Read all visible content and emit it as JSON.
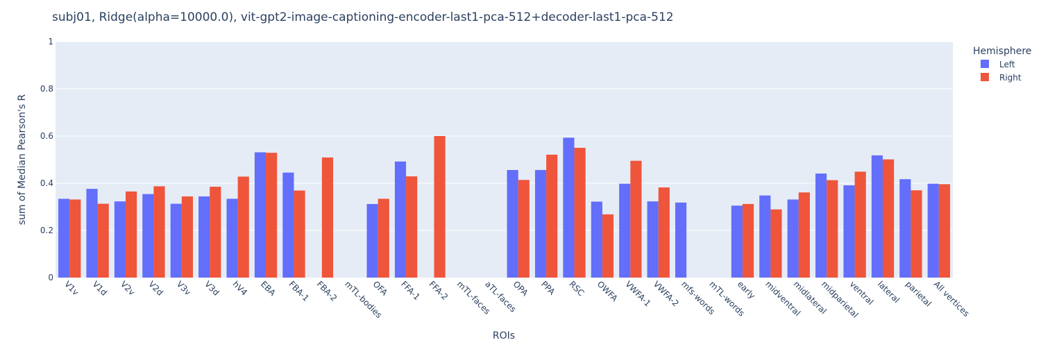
{
  "chart_data": {
    "type": "bar",
    "title": "subj01, Ridge(alpha=10000.0), vit-gpt2-image-captioning-encoder-last1-pca-512+decoder-last1-pca-512",
    "xlabel": "ROIs",
    "ylabel": "sum of Median Pearson's R",
    "ylim": [
      0,
      1
    ],
    "yticks": [
      "0",
      "0.2",
      "0.4",
      "0.6",
      "0.8",
      "1"
    ],
    "grid": true,
    "legend": {
      "title": "Hemisphere",
      "placement": "top-right"
    },
    "categories": [
      "V1v",
      "V1d",
      "V2v",
      "V2d",
      "V3v",
      "V3d",
      "hV4",
      "EBA",
      "FBA-1",
      "FBA-2",
      "mTL-bodies",
      "OFA",
      "FFA-1",
      "FFA-2",
      "mTL-faces",
      "aTL-faces",
      "OPA",
      "PPA",
      "RSC",
      "OWFA",
      "VWFA-1",
      "VWFA-2",
      "mfs-words",
      "mTL-words",
      "early",
      "midventral",
      "midlateral",
      "midparietal",
      "ventral",
      "lateral",
      "parietal",
      "All vertices"
    ],
    "series": [
      {
        "name": "Left",
        "color": "#636efa",
        "values": [
          0.334,
          0.376,
          0.323,
          0.354,
          0.313,
          0.344,
          0.334,
          0.531,
          0.445,
          0,
          0,
          0.312,
          0.492,
          0,
          0,
          0,
          0.456,
          0.456,
          0.593,
          0.322,
          0.398,
          0.323,
          0.318,
          0,
          0.305,
          0.348,
          0.331,
          0.441,
          0.391,
          0.518,
          0.417,
          0.398
        ]
      },
      {
        "name": "Right",
        "color": "#ef553b",
        "values": [
          0.331,
          0.313,
          0.365,
          0.387,
          0.344,
          0.385,
          0.428,
          0.529,
          0.369,
          0.509,
          0,
          0.334,
          0.429,
          0.6,
          0,
          0,
          0.414,
          0.521,
          0.55,
          0.268,
          0.495,
          0.382,
          0,
          0,
          0.312,
          0.289,
          0.361,
          0.413,
          0.449,
          0.501,
          0.37,
          0.396
        ]
      }
    ]
  }
}
